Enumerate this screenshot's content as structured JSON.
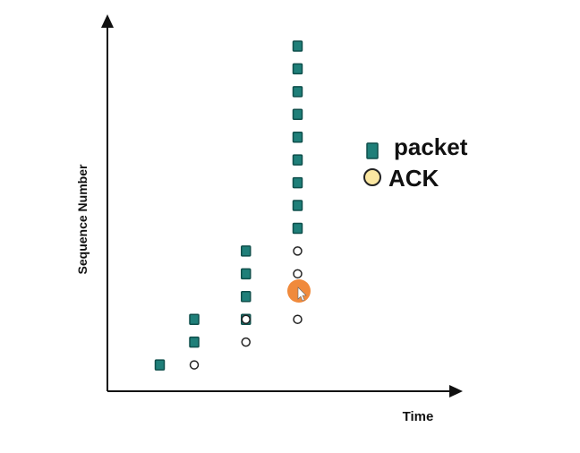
{
  "chart_data": {
    "type": "scatter",
    "title": "",
    "xlabel": "Time",
    "ylabel": "Sequence Number",
    "xlim": [
      0,
      10
    ],
    "ylim": [
      0,
      16
    ],
    "grid": false,
    "legend_position": "top-right",
    "series": [
      {
        "name": "packet",
        "marker": "square",
        "color": "#1f7f79",
        "points": [
          {
            "x": 1.0,
            "y": 1
          },
          {
            "x": 2.0,
            "y": 2
          },
          {
            "x": 2.0,
            "y": 3
          },
          {
            "x": 3.5,
            "y": 3
          },
          {
            "x": 3.5,
            "y": 4
          },
          {
            "x": 3.5,
            "y": 5
          },
          {
            "x": 3.5,
            "y": 6
          },
          {
            "x": 5.0,
            "y": 7
          },
          {
            "x": 5.0,
            "y": 8
          },
          {
            "x": 5.0,
            "y": 9
          },
          {
            "x": 5.0,
            "y": 10
          },
          {
            "x": 5.0,
            "y": 11
          },
          {
            "x": 5.0,
            "y": 12
          },
          {
            "x": 5.0,
            "y": 13
          },
          {
            "x": 5.0,
            "y": 14
          },
          {
            "x": 5.0,
            "y": 15
          }
        ]
      },
      {
        "name": "ACK",
        "marker": "circle",
        "color": "#ffffff",
        "points": [
          {
            "x": 2.0,
            "y": 1
          },
          {
            "x": 3.5,
            "y": 2
          },
          {
            "x": 3.5,
            "y": 3
          },
          {
            "x": 5.0,
            "y": 3
          },
          {
            "x": 5.0,
            "y": 4
          },
          {
            "x": 5.0,
            "y": 5
          },
          {
            "x": 5.0,
            "y": 6
          }
        ]
      }
    ],
    "legend": {
      "items": [
        {
          "label": "packet",
          "marker": "square",
          "color": "#1f7f79"
        },
        {
          "label": "ACK",
          "marker": "circle",
          "color": "#fbe7a1"
        }
      ]
    },
    "cursor": {
      "color": "#f08a3c"
    }
  }
}
